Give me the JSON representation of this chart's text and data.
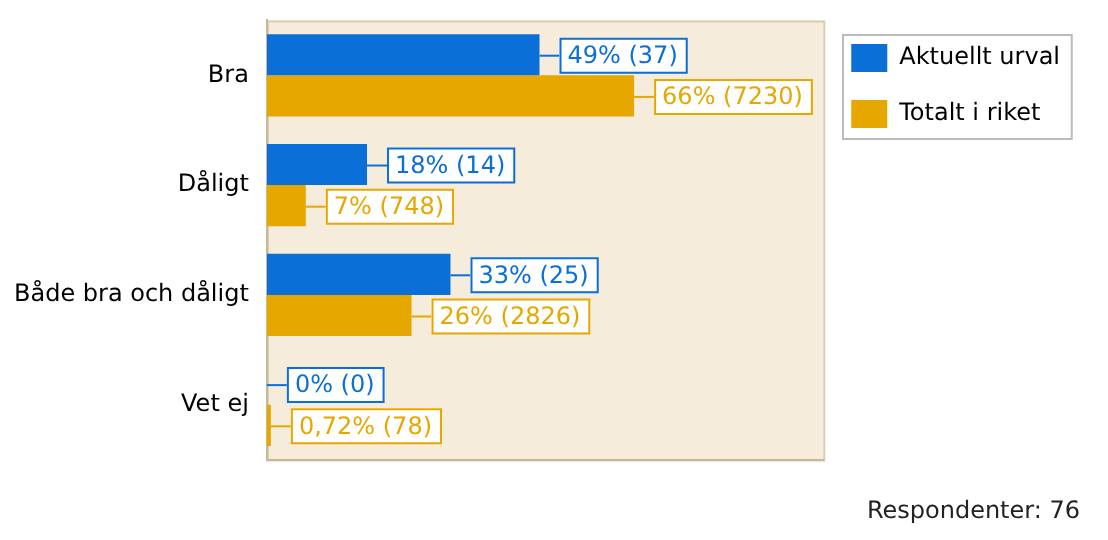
{
  "chart_data": {
    "type": "bar",
    "orientation": "horizontal",
    "categories": [
      "Bra",
      "Dåligt",
      "Både bra och dåligt",
      "Vet ej"
    ],
    "series": [
      {
        "name": "Aktuellt urval",
        "color": "#0a6fd6",
        "values": [
          49,
          18,
          33,
          0
        ],
        "value_labels": [
          "49% (37)",
          "18% (14)",
          "33% (25)",
          "0% (0)"
        ]
      },
      {
        "name": "Totalt i riket",
        "color": "#e6a800",
        "values": [
          66,
          7,
          26,
          0.72
        ],
        "value_labels": [
          "66% (7230)",
          "7% (748)",
          "26% (2826)",
          "0,72% (78)"
        ]
      }
    ],
    "xlim": [
      0,
      100
    ],
    "tick_labels": "y",
    "legend": "top right",
    "annotations": [
      "Respondenter: 76"
    ]
  }
}
